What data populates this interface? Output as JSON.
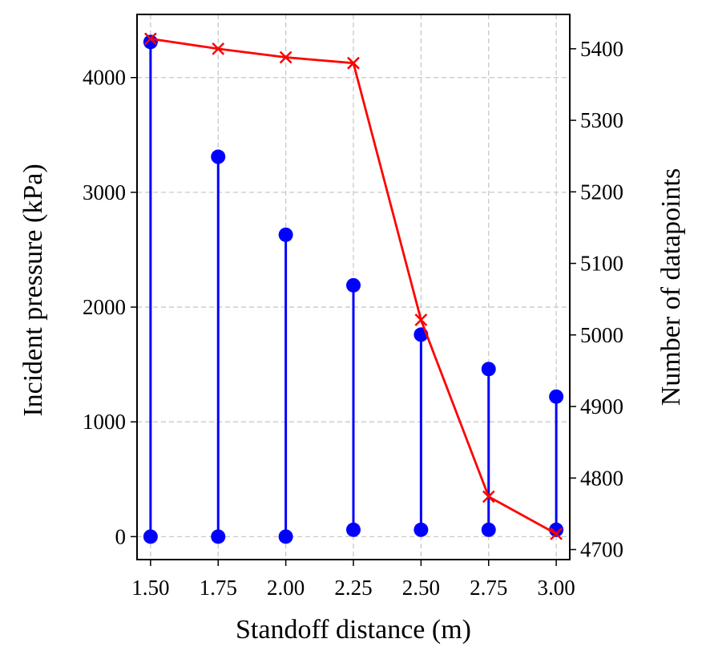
{
  "chart_data": {
    "type": "line",
    "xlabel": "Standoff distance (m)",
    "ylabel_left": "Incident pressure (kPa)",
    "ylabel_right": "Number of datapoints",
    "x_ticks": [
      "1.50",
      "1.75",
      "2.00",
      "2.25",
      "2.50",
      "2.75",
      "3.00"
    ],
    "y_left_ticks": [
      "0",
      "1000",
      "2000",
      "3000",
      "4000"
    ],
    "y_right_ticks": [
      "4700",
      "4800",
      "4900",
      "5000",
      "5100",
      "5200",
      "5300",
      "5400"
    ],
    "xlim": [
      1.45,
      3.05
    ],
    "ylim_left": [
      -200,
      4550
    ],
    "ylim_right": [
      4686,
      5448
    ],
    "grid": true,
    "series": [
      {
        "axis": "left",
        "style": "range-bars",
        "color": "#0000ff",
        "x": [
          1.5,
          1.75,
          2.0,
          2.25,
          2.5,
          2.75,
          3.0
        ],
        "min": [
          0,
          0,
          0,
          60,
          60,
          60,
          60
        ],
        "max": [
          4310,
          3310,
          2630,
          2190,
          1760,
          1460,
          1220
        ]
      },
      {
        "axis": "right",
        "style": "line-x-markers",
        "color": "#ff0000",
        "x": [
          1.5,
          1.75,
          2.0,
          2.25,
          2.5,
          2.75,
          3.0
        ],
        "values": [
          5414,
          5400,
          5388,
          5380,
          5021,
          4774,
          4722
        ]
      }
    ]
  }
}
